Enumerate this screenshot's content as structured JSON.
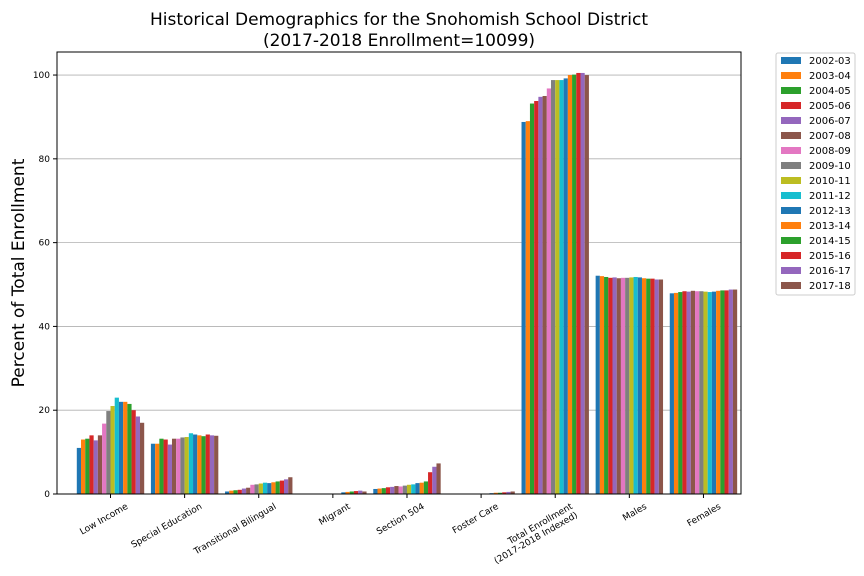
{
  "chart_data": {
    "type": "bar",
    "title": [
      "Historical Demographics for the Snohomish School District",
      "(2017-2018 Enrollment=10099)"
    ],
    "xlabel": "",
    "ylabel": "Percent of Total Enrollment",
    "ylim": [
      0,
      105.5
    ],
    "yticks": [
      0,
      20,
      40,
      60,
      80,
      100
    ],
    "grid": "horizontal",
    "legend_placement": "outside-top-right",
    "categories": [
      [
        "Low Income"
      ],
      [
        "Special Education"
      ],
      [
        "Transitional Bilingual"
      ],
      [
        "Migrant"
      ],
      [
        "Section 504"
      ],
      [
        "Foster Care"
      ],
      [
        "Total Enrollment",
        "(2017-2018 Indexed)"
      ],
      [
        "Males"
      ],
      [
        "Females"
      ]
    ],
    "series": [
      {
        "name": "2002-03",
        "color": "#1f77b4",
        "values": [
          11.0,
          12.0,
          0.6,
          0.0,
          1.2,
          0.0,
          88.8,
          52.1,
          47.9
        ]
      },
      {
        "name": "2003-04",
        "color": "#ff7f0e",
        "values": [
          13.0,
          12.0,
          0.8,
          0.0,
          1.3,
          0.0,
          89.0,
          52.0,
          48.0
        ]
      },
      {
        "name": "2004-05",
        "color": "#2ca02c",
        "values": [
          13.2,
          13.2,
          0.9,
          0.0,
          1.4,
          0.0,
          93.2,
          51.8,
          48.2
        ]
      },
      {
        "name": "2005-06",
        "color": "#d62728",
        "values": [
          14.0,
          13.0,
          1.0,
          0.0,
          1.6,
          0.0,
          93.8,
          51.6,
          48.4
        ]
      },
      {
        "name": "2006-07",
        "color": "#9467bd",
        "values": [
          12.8,
          11.8,
          1.3,
          0.0,
          1.7,
          0.0,
          94.8,
          51.7,
          48.3
        ]
      },
      {
        "name": "2007-08",
        "color": "#8c564b",
        "values": [
          14.0,
          13.2,
          1.5,
          0.0,
          1.9,
          0.0,
          95.0,
          51.5,
          48.5
        ]
      },
      {
        "name": "2008-09",
        "color": "#e377c2",
        "values": [
          16.8,
          13.2,
          2.2,
          0.0,
          1.8,
          0.0,
          96.8,
          51.6,
          48.4
        ]
      },
      {
        "name": "2009-10",
        "color": "#7f7f7f",
        "values": [
          19.8,
          13.5,
          2.3,
          0.0,
          2.0,
          0.0,
          98.8,
          51.6,
          48.4
        ]
      },
      {
        "name": "2010-11",
        "color": "#bcbd22",
        "values": [
          21.0,
          13.6,
          2.5,
          0.0,
          2.2,
          0.0,
          98.8,
          51.7,
          48.3
        ]
      },
      {
        "name": "2011-12",
        "color": "#17becf",
        "values": [
          23.0,
          14.5,
          2.7,
          0.0,
          2.3,
          0.0,
          98.8,
          51.8,
          48.2
        ]
      },
      {
        "name": "2012-13",
        "color": "#1f77b4",
        "values": [
          22.0,
          14.2,
          2.6,
          0.4,
          2.6,
          0.2,
          99.2,
          51.7,
          48.3
        ]
      },
      {
        "name": "2013-14",
        "color": "#ff7f0e",
        "values": [
          22.0,
          14.0,
          2.8,
          0.5,
          2.7,
          0.3,
          100.0,
          51.5,
          48.5
        ]
      },
      {
        "name": "2014-15",
        "color": "#2ca02c",
        "values": [
          21.5,
          13.8,
          3.0,
          0.6,
          3.0,
          0.3,
          100.1,
          51.4,
          48.6
        ]
      },
      {
        "name": "2015-16",
        "color": "#d62728",
        "values": [
          20.0,
          14.2,
          3.2,
          0.7,
          5.2,
          0.4,
          100.5,
          51.4,
          48.6
        ]
      },
      {
        "name": "2016-17",
        "color": "#9467bd",
        "values": [
          18.5,
          14.0,
          3.5,
          0.8,
          6.5,
          0.5,
          100.5,
          51.2,
          48.8
        ]
      },
      {
        "name": "2017-18",
        "color": "#8c564b",
        "values": [
          17.0,
          13.9,
          4.0,
          0.6,
          7.3,
          0.6,
          100.0,
          51.2,
          48.8
        ]
      }
    ]
  }
}
